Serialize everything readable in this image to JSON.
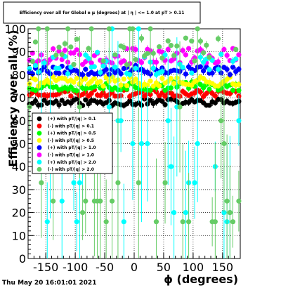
{
  "chart_data": {
    "type": "scatter",
    "title": "Efficiency over all for Global e μ (degrees) at | η | <= 1.0 at pT > 0.11",
    "xlabel": "ϕ (degrees)",
    "ylabel": "Efficiency over all (%)",
    "xlim": [
      -180,
      180
    ],
    "ylim": [
      0,
      100
    ],
    "x_ticks": [
      -150,
      -100,
      -50,
      0,
      50,
      100,
      150
    ],
    "y_ticks": [
      0,
      10,
      20,
      30,
      40,
      50,
      60,
      70,
      80,
      90,
      100
    ],
    "grid": true,
    "legend_position": "middle-left",
    "footer": "Thu May 20 16:01:01 2021",
    "series": [
      {
        "name": "(+) with pT/|q| > 0.1",
        "color": "#000000",
        "mean": 68,
        "spread": 1.5,
        "seed": 11,
        "outlier_prob": 0.0
      },
      {
        "name": "(-) with pT/|q| > 0.1",
        "color": "#ff0000",
        "mean": 72,
        "spread": 1.5,
        "seed": 23,
        "outlier_prob": 0.0
      },
      {
        "name": "(+) with pT/|q| > 0.5",
        "color": "#00ff00",
        "mean": 75,
        "spread": 2.0,
        "seed": 37,
        "outlier_prob": 0.0
      },
      {
        "name": "(-) with pT/|q| > 0.5",
        "color": "#ffff00",
        "mean": 77,
        "spread": 2.0,
        "seed": 41,
        "outlier_prob": 0.0
      },
      {
        "name": "(+) with pT/|q| > 1.0",
        "color": "#0000ff",
        "mean": 82,
        "spread": 2.0,
        "seed": 53,
        "outlier_prob": 0.0
      },
      {
        "name": "(-) with pT/|q| > 1.0",
        "color": "#ff00ff",
        "mean": 88,
        "spread": 3.5,
        "seed": 67,
        "outlier_prob": 0.0
      },
      {
        "name": "(+) with pT/|q| > 2.0",
        "color": "#00ffff",
        "mean": 85,
        "spread": 5.0,
        "seed": 79,
        "outlier_prob": 0.45
      },
      {
        "name": "(-) with pT/|q| > 2.0",
        "color": "#66cc66",
        "mean": 90,
        "spread": 6.0,
        "seed": 97,
        "outlier_prob": 0.5
      }
    ]
  }
}
